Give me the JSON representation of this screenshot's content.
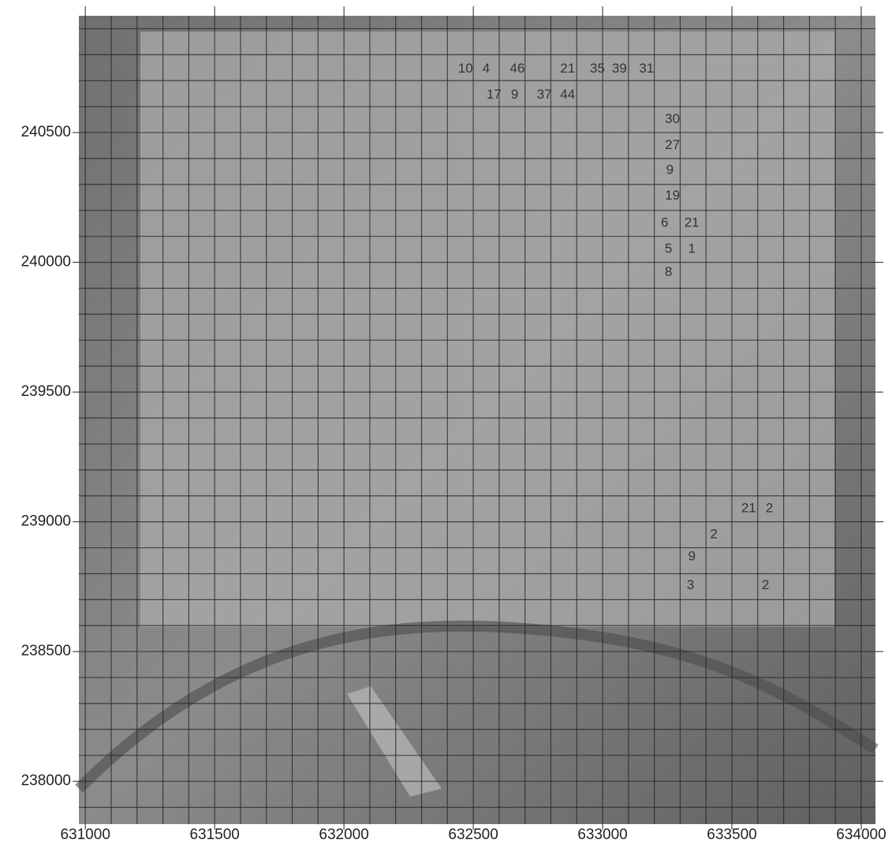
{
  "chart_data": {
    "type": "scatter",
    "x": [
      632470,
      632550,
      632670,
      632865,
      632980,
      633065,
      633170,
      632580,
      632660,
      632775,
      632865,
      633270,
      633270,
      633260,
      633270,
      633240,
      633345,
      633255,
      633345,
      633255,
      633565,
      633645,
      633430,
      633345,
      633340,
      633630
    ],
    "y": [
      240745,
      240745,
      240745,
      240745,
      240745,
      240745,
      240745,
      240645,
      240645,
      240645,
      240645,
      240550,
      240450,
      240355,
      240255,
      240150,
      240150,
      240050,
      240050,
      239960,
      239050,
      239050,
      238950,
      238865,
      238755,
      238755
    ],
    "values": [
      10,
      4,
      46,
      21,
      35,
      39,
      31,
      17,
      9,
      37,
      44,
      30,
      27,
      9,
      19,
      6,
      21,
      5,
      1,
      8,
      21,
      2,
      2,
      9,
      3,
      2
    ],
    "color": "#333333",
    "xlim": [
      630975,
      634055
    ],
    "ylim": [
      237835,
      240950
    ],
    "xticks": [
      631000,
      631500,
      632000,
      632500,
      633000,
      633500,
      634000
    ],
    "yticks": [
      238000,
      238500,
      239000,
      239500,
      240000,
      240500
    ],
    "grid": true,
    "minor_grid_step": 100
  }
}
